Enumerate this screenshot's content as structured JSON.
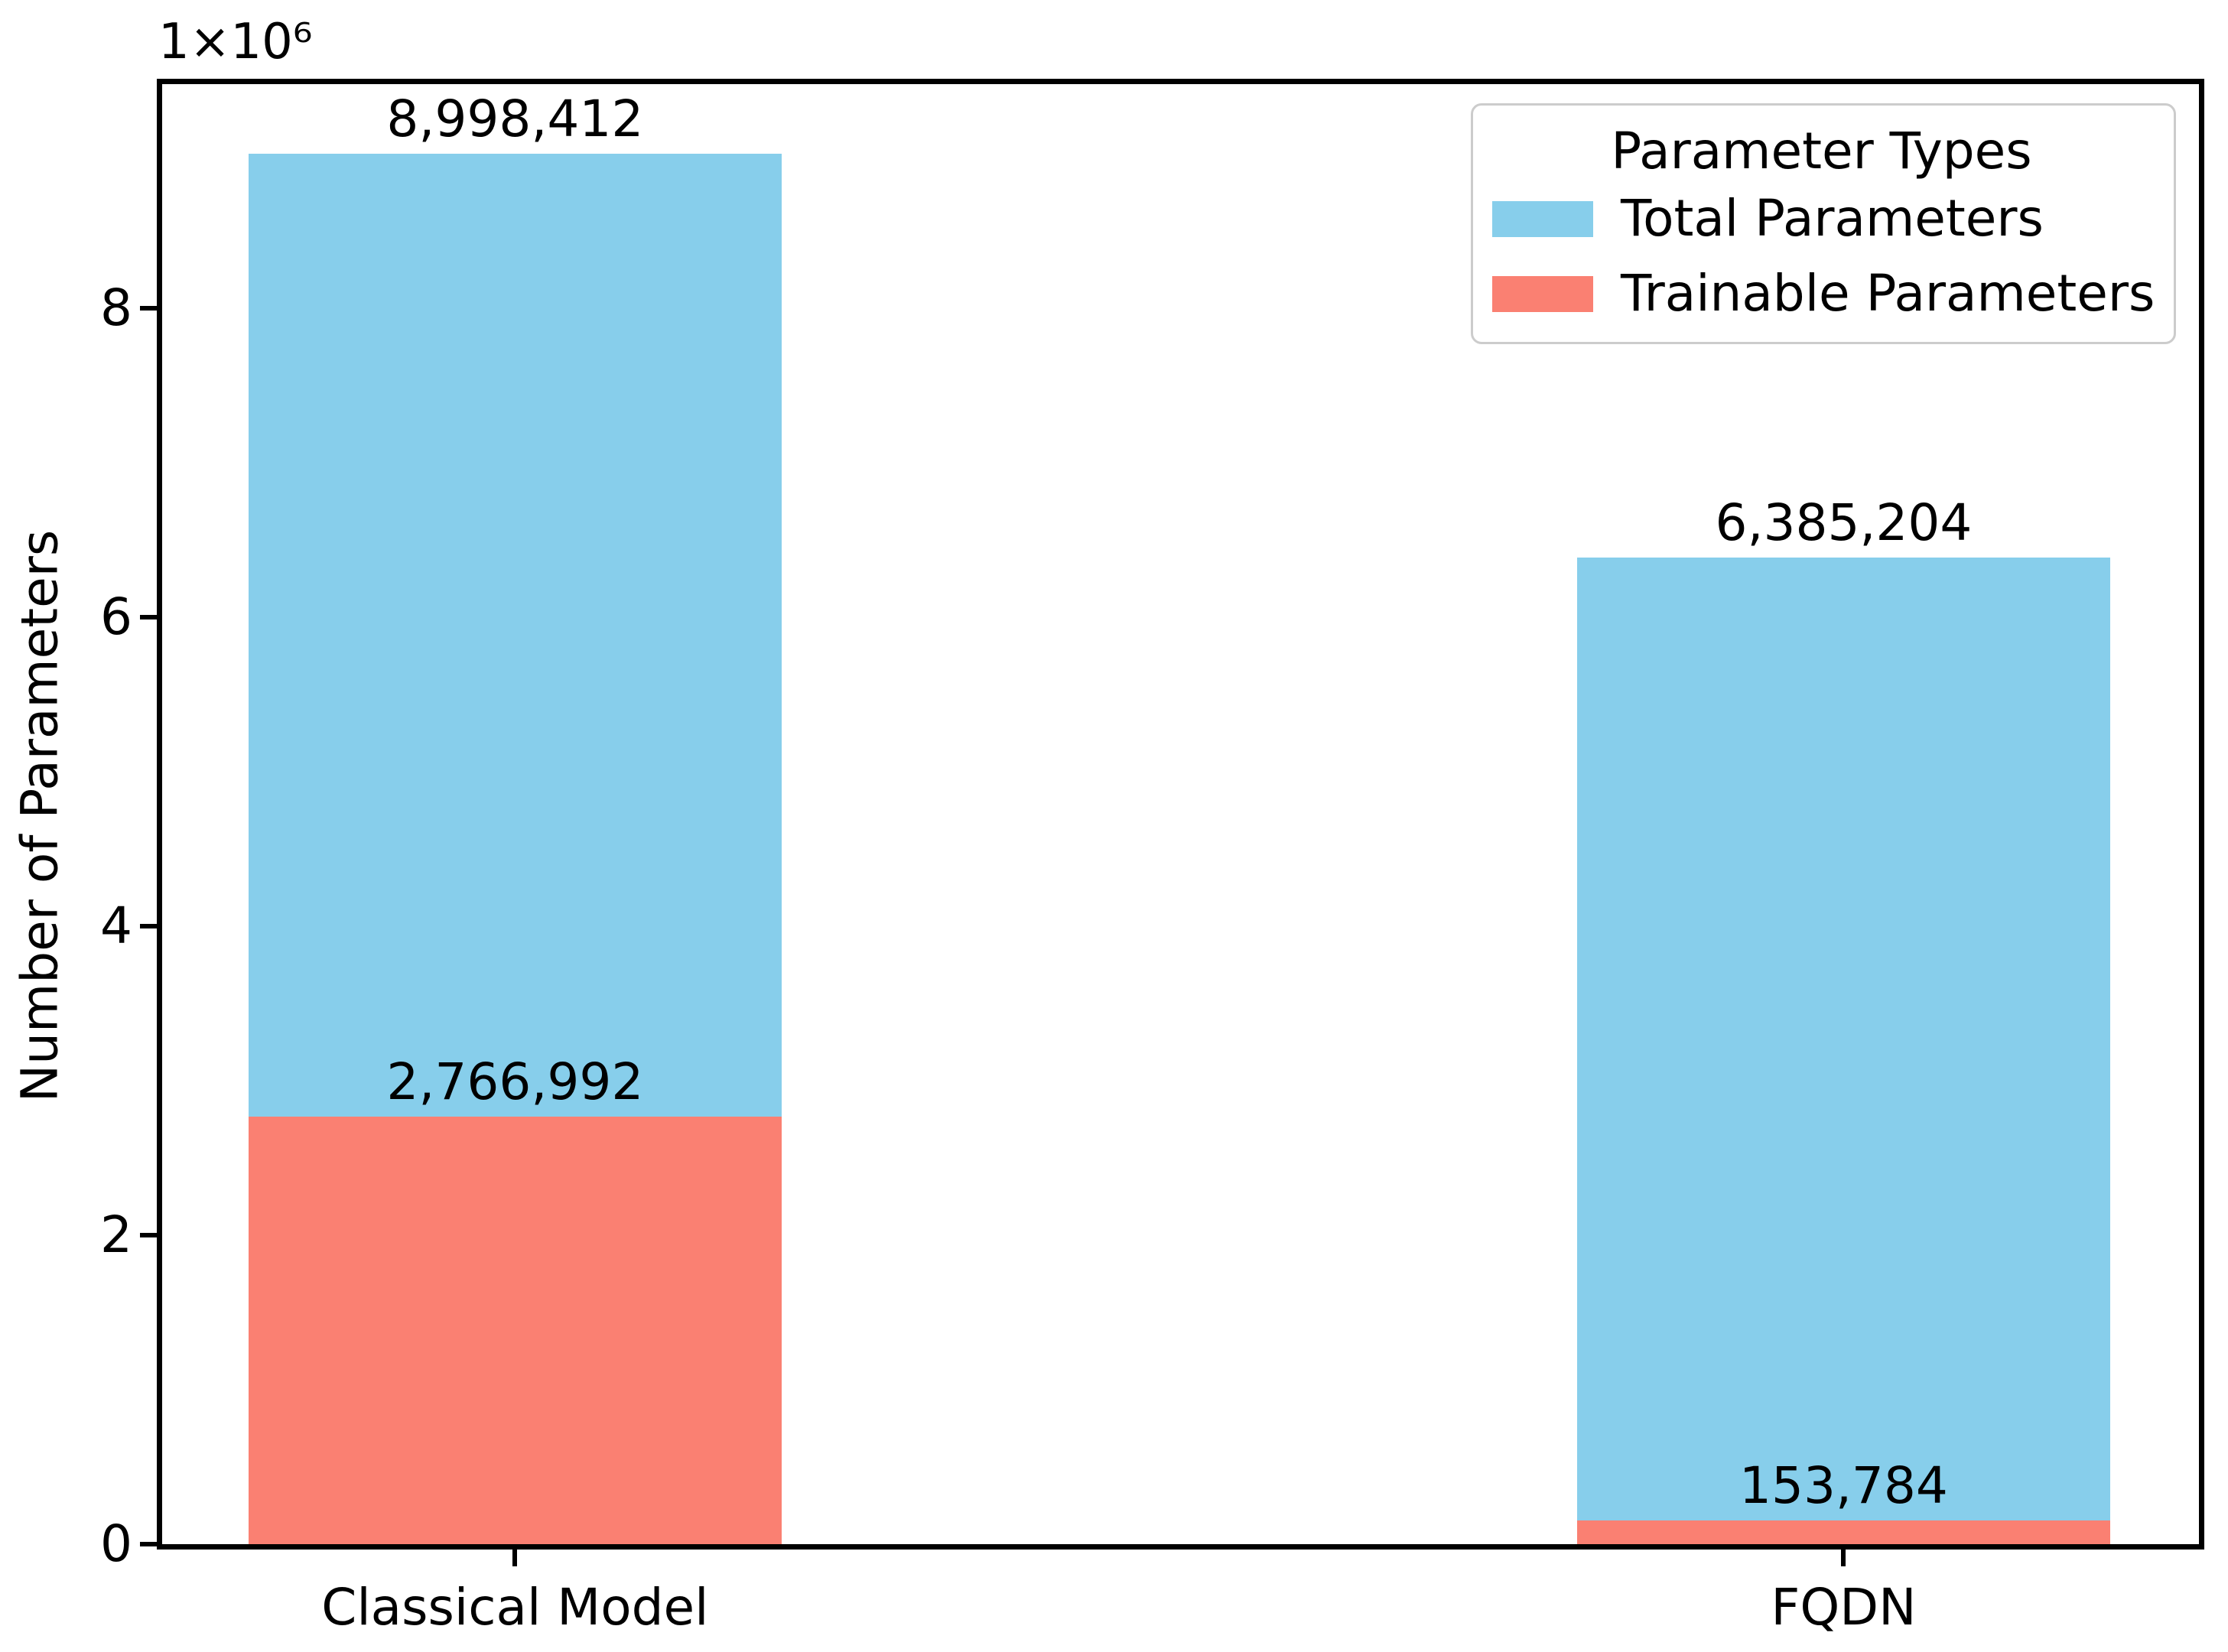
{
  "figure": {
    "background": "#ffffff",
    "text_color": "#000000",
    "spine_color": "#000000"
  },
  "chart_data": {
    "type": "bar",
    "categories": [
      "Classical Model",
      "FQDN"
    ],
    "series": [
      {
        "name": "Total Parameters",
        "color": "#87CEEB",
        "values": [
          8998412,
          6385204
        ],
        "value_labels": [
          "8,998,412",
          "6,385,204"
        ]
      },
      {
        "name": "Trainable Parameters",
        "color": "#FA8072",
        "values": [
          2766992,
          153784
        ],
        "value_labels": [
          "2,766,992",
          "153,784"
        ]
      }
    ],
    "bar_style": "overlaid",
    "title": "",
    "xlabel": "",
    "ylabel": "Number of Parameters",
    "offset_text": "1×10⁶",
    "ylim": [
      0,
      9448333
    ],
    "yticks": [
      0,
      2000000,
      4000000,
      6000000,
      8000000
    ],
    "ytick_labels": [
      "0",
      "2",
      "4",
      "6",
      "8"
    ],
    "grid": false,
    "legend": {
      "title": "Parameter Types",
      "position": "upper right",
      "entries": [
        "Total Parameters",
        "Trainable Parameters"
      ]
    }
  }
}
